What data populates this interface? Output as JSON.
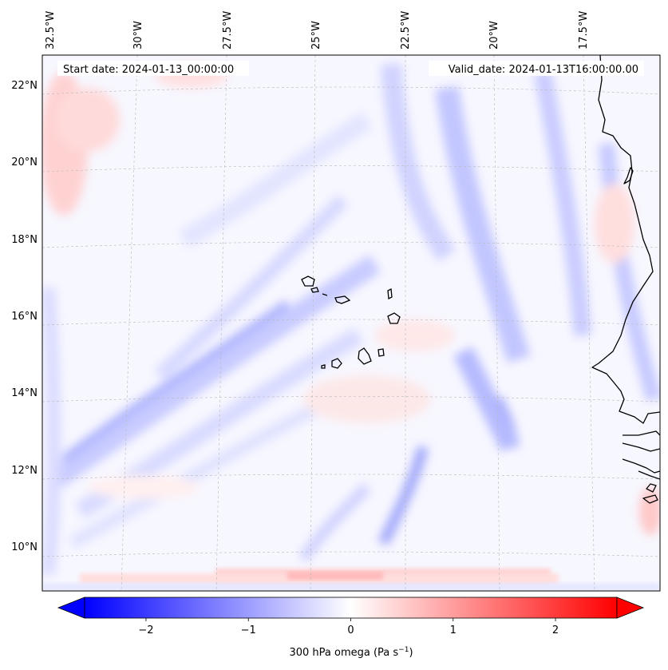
{
  "map": {
    "projection": "lambert-conformal",
    "start_label": "Start date: 2024-01-13_00:00:00",
    "valid_label": "Valid_date: 2024-01-13T16:00:00.00",
    "lon_labels": [
      "32.5°W",
      "30°W",
      "27.5°W",
      "25°W",
      "22.5°W",
      "20°W",
      "17.5°W"
    ],
    "lat_labels": [
      "22°N",
      "20°N",
      "18°N",
      "16°N",
      "14°N",
      "12°N",
      "10°N"
    ],
    "gridlines": true,
    "coastline_color": "#000000",
    "features": [
      "Cabo Verde islands",
      "West African coastline"
    ]
  },
  "colorbar": {
    "label_text": "300 hPa omega (Pa s",
    "label_exp": "−1",
    "label_close": ")",
    "colormap": "bwr",
    "range": [
      -2.6,
      2.6
    ],
    "extend": "both",
    "ticks": [
      "−2",
      "−1",
      "0",
      "1",
      "2"
    ],
    "tick_values": [
      -2,
      -1,
      0,
      1,
      2
    ],
    "colors": {
      "negative": "#0000ff",
      "zero": "#ffffff",
      "positive": "#ff0000"
    }
  }
}
